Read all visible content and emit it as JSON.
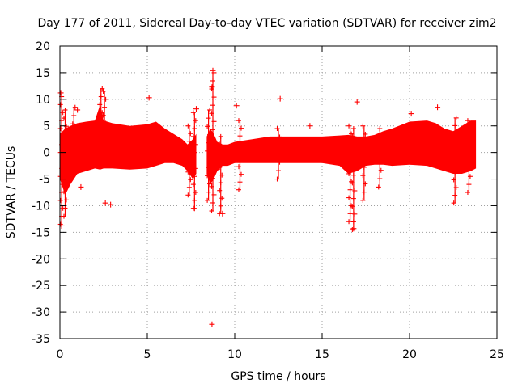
{
  "chart_data": {
    "type": "scatter",
    "title": "Day 177 of 2011, Sidereal Day-to-day VTEC variation (SDTVAR) for receiver zim2",
    "xlabel": "GPS time / hours",
    "ylabel": "SDTVAR / TECUs",
    "xlim": [
      0,
      25
    ],
    "ylim": [
      -35,
      20
    ],
    "grid": true,
    "marker": "+",
    "color": "#ff0000",
    "xticks": [
      0,
      5,
      10,
      15,
      20,
      25
    ],
    "yticks": [
      -35,
      -30,
      -25,
      -20,
      -15,
      -10,
      -5,
      0,
      5,
      10,
      15,
      20
    ],
    "xtick_labels": [
      "0",
      "5",
      "10",
      "15",
      "20",
      "25"
    ],
    "ytick_labels": [
      "-35",
      "-30",
      "-25",
      "-20",
      "-15",
      "-10",
      "-5",
      "0",
      "5",
      "10",
      "15",
      "20"
    ],
    "envelope": {
      "description": "dense band of points; upper and lower bounds in data units",
      "segments": [
        {
          "x": [
            0.0,
            0.3,
            0.6,
            1.0,
            1.5,
            2.0,
            2.3,
            2.5,
            3.0,
            4.0,
            5.0,
            5.5,
            6.0,
            6.5,
            7.0,
            7.3,
            7.6,
            7.8
          ],
          "upper": [
            3.5,
            4.5,
            5.0,
            5.5,
            5.8,
            6.0,
            9.0,
            6.0,
            5.5,
            5.0,
            5.3,
            5.8,
            4.5,
            3.5,
            2.5,
            1.5,
            2.5,
            3.5
          ],
          "lower": [
            -5.0,
            -8.0,
            -6.0,
            -4.0,
            -3.5,
            -3.0,
            -3.2,
            -3.0,
            -3.0,
            -3.2,
            -3.0,
            -2.5,
            -2.0,
            -2.0,
            -2.5,
            -3.5,
            -5.0,
            -4.0
          ]
        },
        {
          "x": [
            8.4,
            8.6,
            8.8,
            9.0,
            9.3,
            9.6,
            10.0,
            11.0,
            12.0,
            13.0,
            14.0,
            15.0,
            16.0,
            16.5,
            17.0,
            17.5,
            18.0,
            18.5,
            19.0,
            20.0,
            21.0,
            21.5,
            22.0,
            22.5,
            23.0,
            23.5,
            23.8
          ],
          "upper": [
            3.0,
            4.5,
            3.5,
            2.0,
            1.5,
            1.5,
            2.0,
            2.5,
            3.0,
            3.0,
            3.0,
            3.0,
            3.2,
            3.3,
            3.0,
            3.0,
            3.3,
            4.0,
            4.5,
            5.8,
            6.0,
            5.5,
            4.5,
            4.0,
            5.0,
            6.0,
            6.0
          ],
          "lower": [
            -4.0,
            -6.0,
            -5.0,
            -3.5,
            -2.5,
            -2.5,
            -2.0,
            -2.0,
            -2.0,
            -2.0,
            -2.0,
            -2.0,
            -2.5,
            -4.0,
            -3.5,
            -2.5,
            -2.3,
            -2.3,
            -2.5,
            -2.3,
            -2.5,
            -3.0,
            -3.5,
            -4.0,
            -4.0,
            -3.5,
            -3.0
          ]
        }
      ]
    },
    "spikes": [
      {
        "x": 0.1,
        "low": -13.5,
        "high": 10.5
      },
      {
        "x": 0.3,
        "low": -12.0,
        "high": 8.0
      },
      {
        "x": 0.8,
        "low": -4.0,
        "high": 8.5
      },
      {
        "x": 2.35,
        "low": 0.0,
        "high": 12.0
      },
      {
        "x": 2.55,
        "low": -2.0,
        "high": 11.5
      },
      {
        "x": 7.4,
        "low": -8.0,
        "high": 5.0
      },
      {
        "x": 7.7,
        "low": -10.5,
        "high": 7.5
      },
      {
        "x": 8.5,
        "low": -9.0,
        "high": 8.0
      },
      {
        "x": 8.75,
        "low": -11.0,
        "high": 15.0
      },
      {
        "x": 9.2,
        "low": -11.5,
        "high": 3.0
      },
      {
        "x": 10.3,
        "low": -7.0,
        "high": 6.0
      },
      {
        "x": 12.5,
        "low": -5.0,
        "high": 4.5
      },
      {
        "x": 16.6,
        "low": -13.0,
        "high": 5.0
      },
      {
        "x": 16.8,
        "low": -14.5,
        "high": 4.5
      },
      {
        "x": 17.4,
        "low": -9.0,
        "high": 5.0
      },
      {
        "x": 18.3,
        "low": -6.5,
        "high": 4.5
      },
      {
        "x": 22.6,
        "low": -9.5,
        "high": 6.5
      },
      {
        "x": 23.4,
        "low": -7.5,
        "high": 6.0
      }
    ],
    "points": [
      {
        "x": 0.05,
        "y": 11.2
      },
      {
        "x": 0.1,
        "y": -13.8
      },
      {
        "x": 1.0,
        "y": 8.0
      },
      {
        "x": 1.2,
        "y": -6.5
      },
      {
        "x": 2.6,
        "y": -9.5
      },
      {
        "x": 2.9,
        "y": -9.8
      },
      {
        "x": 5.1,
        "y": 10.3
      },
      {
        "x": 7.8,
        "y": 8.2
      },
      {
        "x": 8.7,
        "y": 12.3
      },
      {
        "x": 8.75,
        "y": 15.4
      },
      {
        "x": 8.7,
        "y": -32.3
      },
      {
        "x": 9.3,
        "y": -11.5
      },
      {
        "x": 10.1,
        "y": 8.8
      },
      {
        "x": 12.6,
        "y": 10.1
      },
      {
        "x": 14.3,
        "y": 5.0
      },
      {
        "x": 16.8,
        "y": -14.3
      },
      {
        "x": 17.0,
        "y": 9.5
      },
      {
        "x": 21.6,
        "y": 8.5
      },
      {
        "x": 20.1,
        "y": 7.3
      },
      {
        "x": 7.7,
        "y": -10.5
      }
    ]
  }
}
